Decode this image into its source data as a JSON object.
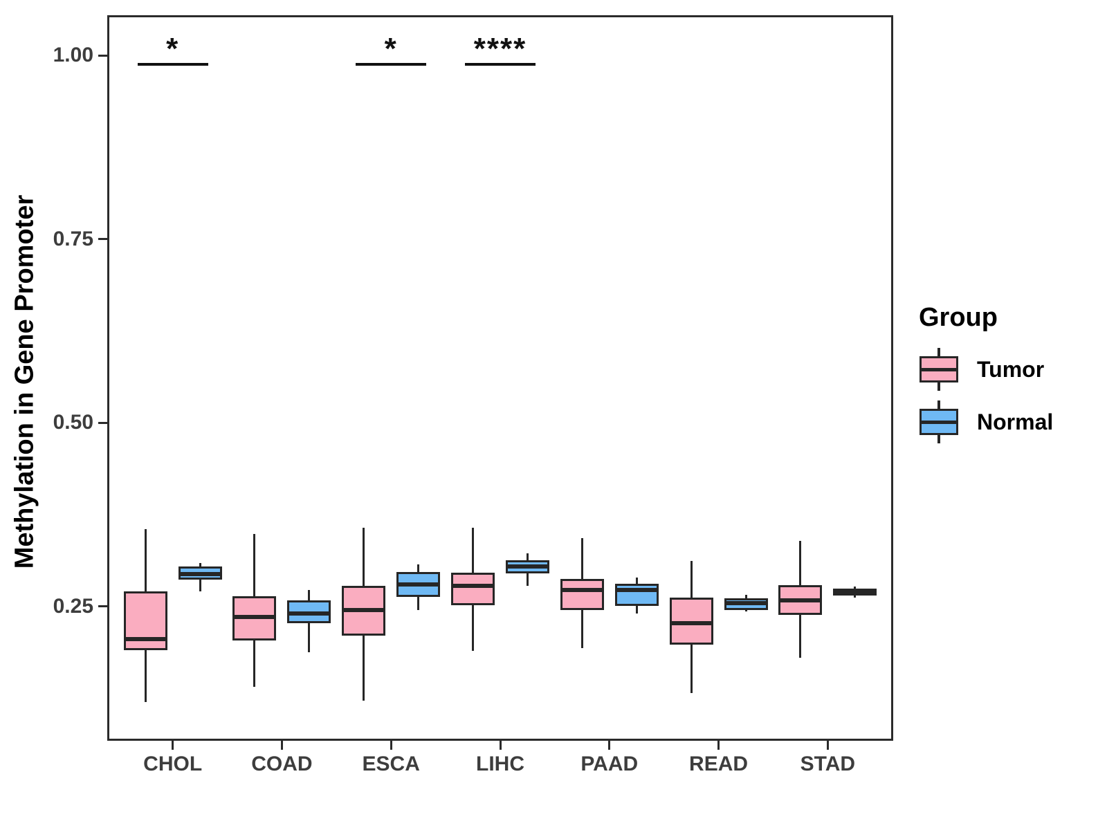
{
  "chart_data": {
    "type": "boxplot",
    "title": "",
    "xlabel": "",
    "ylabel": "Methylation in Gene Promoter",
    "categories": [
      "CHOL",
      "COAD",
      "ESCA",
      "LIHC",
      "PAAD",
      "READ",
      "STAD"
    ],
    "y_ticks": [
      {
        "label": "0.25",
        "value": 0.25
      },
      {
        "label": "0.50",
        "value": 0.5
      },
      {
        "label": "0.75",
        "value": 0.75
      },
      {
        "label": "1.00",
        "value": 1.0
      }
    ],
    "ylim": [
      0.067,
      1.055
    ],
    "grid": false,
    "legend": {
      "title": "Group",
      "position": "right"
    },
    "series": [
      {
        "name": "Tumor",
        "color": "#FAADC0",
        "stats_format": [
          "whisker_low",
          "q1",
          "median",
          "q3",
          "whisker_high"
        ],
        "stats": [
          [
            0.12,
            0.19,
            0.205,
            0.27,
            0.355
          ],
          [
            0.14,
            0.204,
            0.236,
            0.264,
            0.349
          ],
          [
            0.122,
            0.21,
            0.245,
            0.278,
            0.357
          ],
          [
            0.189,
            0.252,
            0.278,
            0.296,
            0.357
          ],
          [
            0.193,
            0.245,
            0.272,
            0.287,
            0.343
          ],
          [
            0.132,
            0.198,
            0.227,
            0.262,
            0.312
          ],
          [
            0.18,
            0.238,
            0.258,
            0.279,
            0.339
          ]
        ]
      },
      {
        "name": "Normal",
        "color": "#6FB9F4",
        "stats_format": [
          "whisker_low",
          "q1",
          "median",
          "q3",
          "whisker_high"
        ],
        "stats": [
          [
            0.27,
            0.286,
            0.294,
            0.304,
            0.309
          ],
          [
            0.188,
            0.227,
            0.24,
            0.258,
            0.272
          ],
          [
            0.245,
            0.263,
            0.28,
            0.297,
            0.307
          ],
          [
            0.278,
            0.295,
            0.304,
            0.313,
            0.322
          ],
          [
            0.24,
            0.251,
            0.272,
            0.281,
            0.289
          ],
          [
            0.243,
            0.245,
            0.254,
            0.261,
            0.266
          ],
          [
            0.262,
            0.265,
            0.27,
            0.274,
            0.277
          ]
        ]
      }
    ],
    "annotations": [
      {
        "category": "CHOL",
        "category_index": 0,
        "label": "*",
        "bracket_y": 0.988
      },
      {
        "category": "ESCA",
        "category_index": 2,
        "label": "*",
        "bracket_y": 0.988
      },
      {
        "category": "LIHC",
        "category_index": 3,
        "label": "****",
        "bracket_y": 0.988
      }
    ]
  }
}
